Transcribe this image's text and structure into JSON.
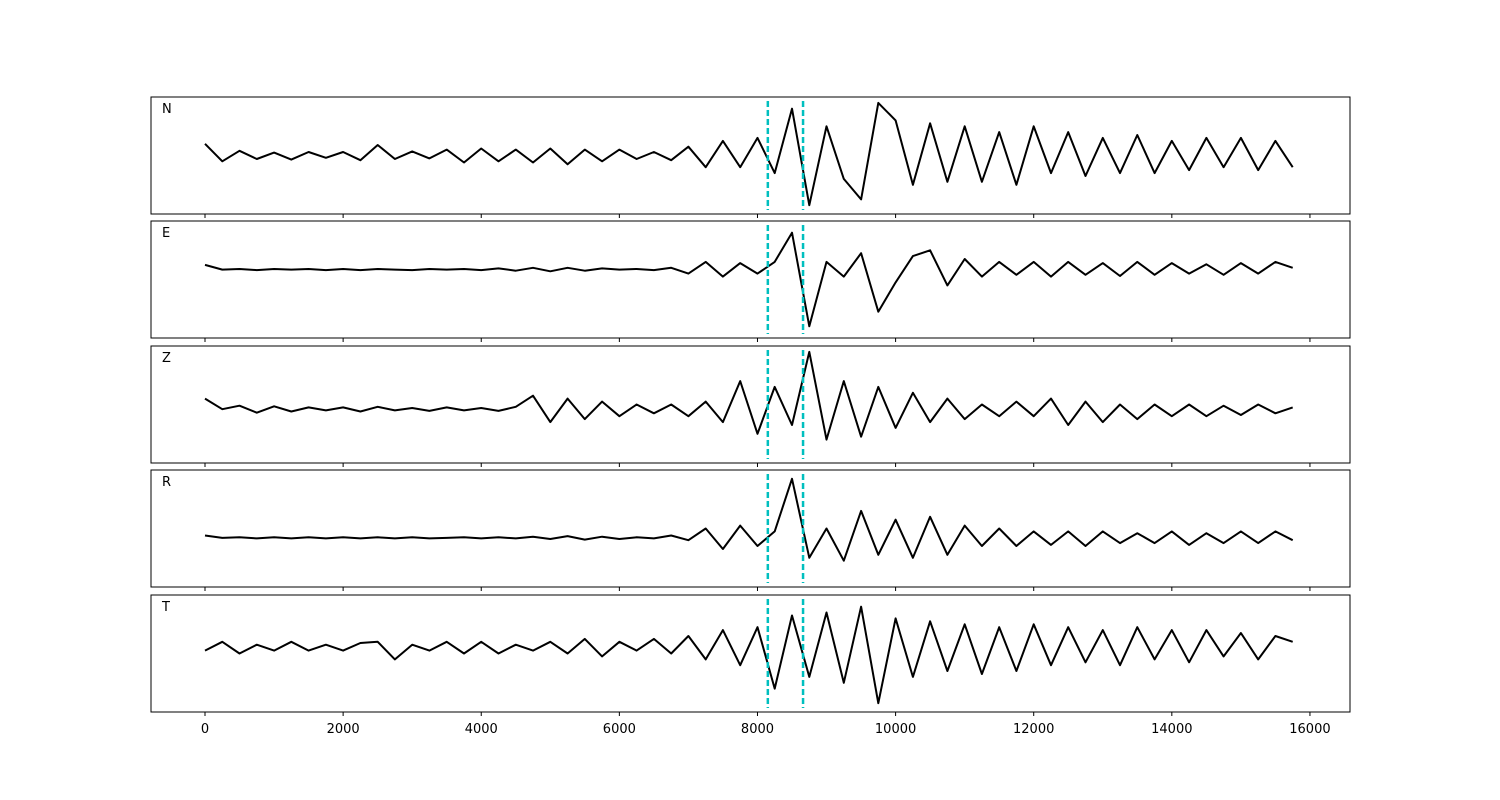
{
  "chart_data": [
    {
      "type": "line",
      "label": "N",
      "color": "#000000",
      "vlines": [
        8150,
        8660
      ],
      "vline_color": "#00bfbf",
      "xlim": [
        -782,
        16580
      ],
      "ylim": [
        -1,
        1
      ],
      "xticks": [
        0,
        2000,
        4000,
        6000,
        8000,
        10000,
        12000,
        14000,
        16000
      ],
      "x": [
        0,
        250,
        500,
        750,
        1000,
        1250,
        1500,
        1750,
        2000,
        2250,
        2500,
        2750,
        3000,
        3250,
        3500,
        3750,
        4000,
        4250,
        4500,
        4750,
        5000,
        5250,
        5500,
        5750,
        6000,
        6250,
        6500,
        6750,
        7000,
        7250,
        7500,
        7750,
        8000,
        8250,
        8500,
        8750,
        9000,
        9250,
        9500,
        9750,
        10000,
        10250,
        10500,
        10750,
        11000,
        11250,
        11500,
        11750,
        12000,
        12250,
        12500,
        12750,
        13000,
        13250,
        13500,
        13750,
        14000,
        14250,
        14500,
        14750,
        15000,
        15250,
        15500,
        15750
      ],
      "values": [
        0.2,
        -0.1,
        0.08,
        -0.06,
        0.05,
        -0.07,
        0.06,
        -0.04,
        0.06,
        -0.08,
        0.18,
        -0.06,
        0.07,
        -0.05,
        0.1,
        -0.12,
        0.12,
        -0.1,
        0.1,
        -0.12,
        0.12,
        -0.15,
        0.1,
        -0.1,
        0.1,
        -0.06,
        0.06,
        -0.08,
        0.15,
        -0.2,
        0.25,
        -0.2,
        0.3,
        -0.3,
        0.8,
        -0.85,
        0.5,
        -0.4,
        -0.75,
        0.9,
        0.6,
        -0.5,
        0.55,
        -0.45,
        0.5,
        -0.45,
        0.4,
        -0.5,
        0.5,
        -0.3,
        0.4,
        -0.35,
        0.3,
        -0.3,
        0.35,
        -0.3,
        0.25,
        -0.25,
        0.3,
        -0.2,
        0.3,
        -0.25,
        0.25,
        -0.2
      ]
    },
    {
      "type": "line",
      "label": "E",
      "color": "#000000",
      "vlines": [
        8150,
        8660
      ],
      "vline_color": "#00bfbf",
      "xlim": [
        -782,
        16580
      ],
      "ylim": [
        -1,
        1
      ],
      "xticks": [
        0,
        2000,
        4000,
        6000,
        8000,
        10000,
        12000,
        14000,
        16000
      ],
      "x": [
        0,
        250,
        500,
        750,
        1000,
        1250,
        1500,
        1750,
        2000,
        2250,
        2500,
        2750,
        3000,
        3250,
        3500,
        3750,
        4000,
        4250,
        4500,
        4750,
        5000,
        5250,
        5500,
        5750,
        6000,
        6250,
        6500,
        6750,
        7000,
        7250,
        7500,
        7750,
        8000,
        8250,
        8500,
        8750,
        9000,
        9250,
        9500,
        9750,
        10000,
        10250,
        10500,
        10750,
        11000,
        11250,
        11500,
        11750,
        12000,
        12250,
        12500,
        12750,
        13000,
        13250,
        13500,
        13750,
        14000,
        14250,
        14500,
        14750,
        15000,
        15250,
        15500,
        15750
      ],
      "values": [
        0.25,
        0.17,
        0.18,
        0.16,
        0.18,
        0.17,
        0.18,
        0.16,
        0.18,
        0.16,
        0.18,
        0.17,
        0.16,
        0.18,
        0.17,
        0.18,
        0.16,
        0.19,
        0.15,
        0.2,
        0.14,
        0.2,
        0.15,
        0.19,
        0.17,
        0.18,
        0.16,
        0.2,
        0.1,
        0.3,
        0.05,
        0.28,
        0.1,
        0.3,
        0.8,
        -0.8,
        0.3,
        0.05,
        0.45,
        -0.55,
        -0.05,
        0.4,
        0.5,
        -0.1,
        0.35,
        0.05,
        0.3,
        0.08,
        0.3,
        0.05,
        0.3,
        0.08,
        0.28,
        0.06,
        0.3,
        0.08,
        0.28,
        0.1,
        0.26,
        0.08,
        0.28,
        0.1,
        0.3,
        0.2
      ]
    },
    {
      "type": "line",
      "label": "Z",
      "color": "#000000",
      "vlines": [
        8150,
        8660
      ],
      "vline_color": "#00bfbf",
      "xlim": [
        -782,
        16580
      ],
      "ylim": [
        -1,
        1
      ],
      "xticks": [
        0,
        2000,
        4000,
        6000,
        8000,
        10000,
        12000,
        14000,
        16000
      ],
      "x": [
        0,
        250,
        500,
        750,
        1000,
        1250,
        1500,
        1750,
        2000,
        2250,
        2500,
        2750,
        3000,
        3250,
        3500,
        3750,
        4000,
        4250,
        4500,
        4750,
        5000,
        5250,
        5500,
        5750,
        6000,
        6250,
        6500,
        6750,
        7000,
        7250,
        7500,
        7750,
        8000,
        8250,
        8500,
        8750,
        9000,
        9250,
        9500,
        9750,
        10000,
        10250,
        10500,
        10750,
        11000,
        11250,
        11500,
        11750,
        12000,
        12250,
        12500,
        12750,
        13000,
        13250,
        13500,
        13750,
        14000,
        14250,
        14500,
        14750,
        15000,
        15250,
        15500,
        15750
      ],
      "values": [
        0.1,
        -0.08,
        -0.02,
        -0.14,
        -0.03,
        -0.12,
        -0.05,
        -0.1,
        -0.05,
        -0.12,
        -0.04,
        -0.1,
        -0.06,
        -0.11,
        -0.05,
        -0.1,
        -0.06,
        -0.11,
        -0.04,
        0.15,
        -0.3,
        0.1,
        -0.25,
        0.05,
        -0.2,
        0.0,
        -0.15,
        0.0,
        -0.2,
        0.05,
        -0.3,
        0.4,
        -0.5,
        0.3,
        -0.35,
        0.9,
        -0.6,
        0.4,
        -0.55,
        0.3,
        -0.4,
        0.2,
        -0.3,
        0.1,
        -0.25,
        0.0,
        -0.2,
        0.05,
        -0.2,
        0.1,
        -0.35,
        0.05,
        -0.3,
        0.0,
        -0.25,
        0.0,
        -0.2,
        0.0,
        -0.2,
        -0.02,
        -0.18,
        0.0,
        -0.15,
        -0.05
      ]
    },
    {
      "type": "line",
      "label": "R",
      "color": "#000000",
      "vlines": [
        8150,
        8660
      ],
      "vline_color": "#00bfbf",
      "xlim": [
        -782,
        16580
      ],
      "ylim": [
        -1,
        1
      ],
      "xticks": [
        0,
        2000,
        4000,
        6000,
        8000,
        10000,
        12000,
        14000,
        16000
      ],
      "x": [
        0,
        250,
        500,
        750,
        1000,
        1250,
        1500,
        1750,
        2000,
        2250,
        2500,
        2750,
        3000,
        3250,
        3500,
        3750,
        4000,
        4250,
        4500,
        4750,
        5000,
        5250,
        5500,
        5750,
        6000,
        6250,
        6500,
        6750,
        7000,
        7250,
        7500,
        7750,
        8000,
        8250,
        8500,
        8750,
        9000,
        9250,
        9500,
        9750,
        10000,
        10250,
        10500,
        10750,
        11000,
        11250,
        11500,
        11750,
        12000,
        12250,
        12500,
        12750,
        13000,
        13250,
        13500,
        13750,
        14000,
        14250,
        14500,
        14750,
        15000,
        15250,
        15500,
        15750
      ],
      "values": [
        -0.12,
        -0.16,
        -0.15,
        -0.17,
        -0.15,
        -0.17,
        -0.15,
        -0.17,
        -0.15,
        -0.17,
        -0.15,
        -0.17,
        -0.15,
        -0.17,
        -0.16,
        -0.15,
        -0.17,
        -0.15,
        -0.17,
        -0.14,
        -0.18,
        -0.13,
        -0.19,
        -0.14,
        -0.18,
        -0.15,
        -0.17,
        -0.12,
        -0.2,
        0.0,
        -0.35,
        0.05,
        -0.3,
        -0.05,
        0.85,
        -0.5,
        0.0,
        -0.55,
        0.3,
        -0.45,
        0.15,
        -0.5,
        0.2,
        -0.45,
        0.05,
        -0.3,
        0.0,
        -0.3,
        -0.05,
        -0.28,
        -0.05,
        -0.3,
        -0.05,
        -0.25,
        -0.08,
        -0.25,
        -0.05,
        -0.28,
        -0.08,
        -0.25,
        -0.05,
        -0.25,
        -0.05,
        -0.2
      ]
    },
    {
      "type": "line",
      "label": "T",
      "color": "#000000",
      "vlines": [
        8150,
        8660
      ],
      "vline_color": "#00bfbf",
      "xlim": [
        -782,
        16580
      ],
      "ylim": [
        -1,
        1
      ],
      "xticks": [
        0,
        2000,
        4000,
        6000,
        8000,
        10000,
        12000,
        14000,
        16000
      ],
      "x": [
        0,
        250,
        500,
        750,
        1000,
        1250,
        1500,
        1750,
        2000,
        2250,
        2500,
        2750,
        3000,
        3250,
        3500,
        3750,
        4000,
        4250,
        4500,
        4750,
        5000,
        5250,
        5500,
        5750,
        6000,
        6250,
        6500,
        6750,
        7000,
        7250,
        7500,
        7750,
        8000,
        8250,
        8500,
        8750,
        9000,
        9250,
        9500,
        9750,
        10000,
        10250,
        10500,
        10750,
        11000,
        11250,
        11500,
        11750,
        12000,
        12250,
        12500,
        12750,
        13000,
        13250,
        13500,
        13750,
        14000,
        14250,
        14500,
        14750,
        15000,
        15250,
        15500,
        15750
      ],
      "values": [
        0.05,
        0.2,
        0.0,
        0.15,
        0.05,
        0.2,
        0.05,
        0.15,
        0.05,
        0.18,
        0.2,
        -0.1,
        0.15,
        0.05,
        0.2,
        0.0,
        0.2,
        0.0,
        0.15,
        0.05,
        0.2,
        0.0,
        0.25,
        -0.05,
        0.2,
        0.05,
        0.25,
        0.0,
        0.3,
        -0.1,
        0.4,
        -0.2,
        0.45,
        -0.6,
        0.65,
        -0.4,
        0.7,
        -0.5,
        0.8,
        -0.85,
        0.6,
        -0.4,
        0.55,
        -0.3,
        0.5,
        -0.35,
        0.45,
        -0.3,
        0.5,
        -0.2,
        0.45,
        -0.15,
        0.4,
        -0.2,
        0.45,
        -0.1,
        0.4,
        -0.15,
        0.4,
        -0.05,
        0.35,
        -0.1,
        0.3,
        0.2
      ]
    }
  ]
}
